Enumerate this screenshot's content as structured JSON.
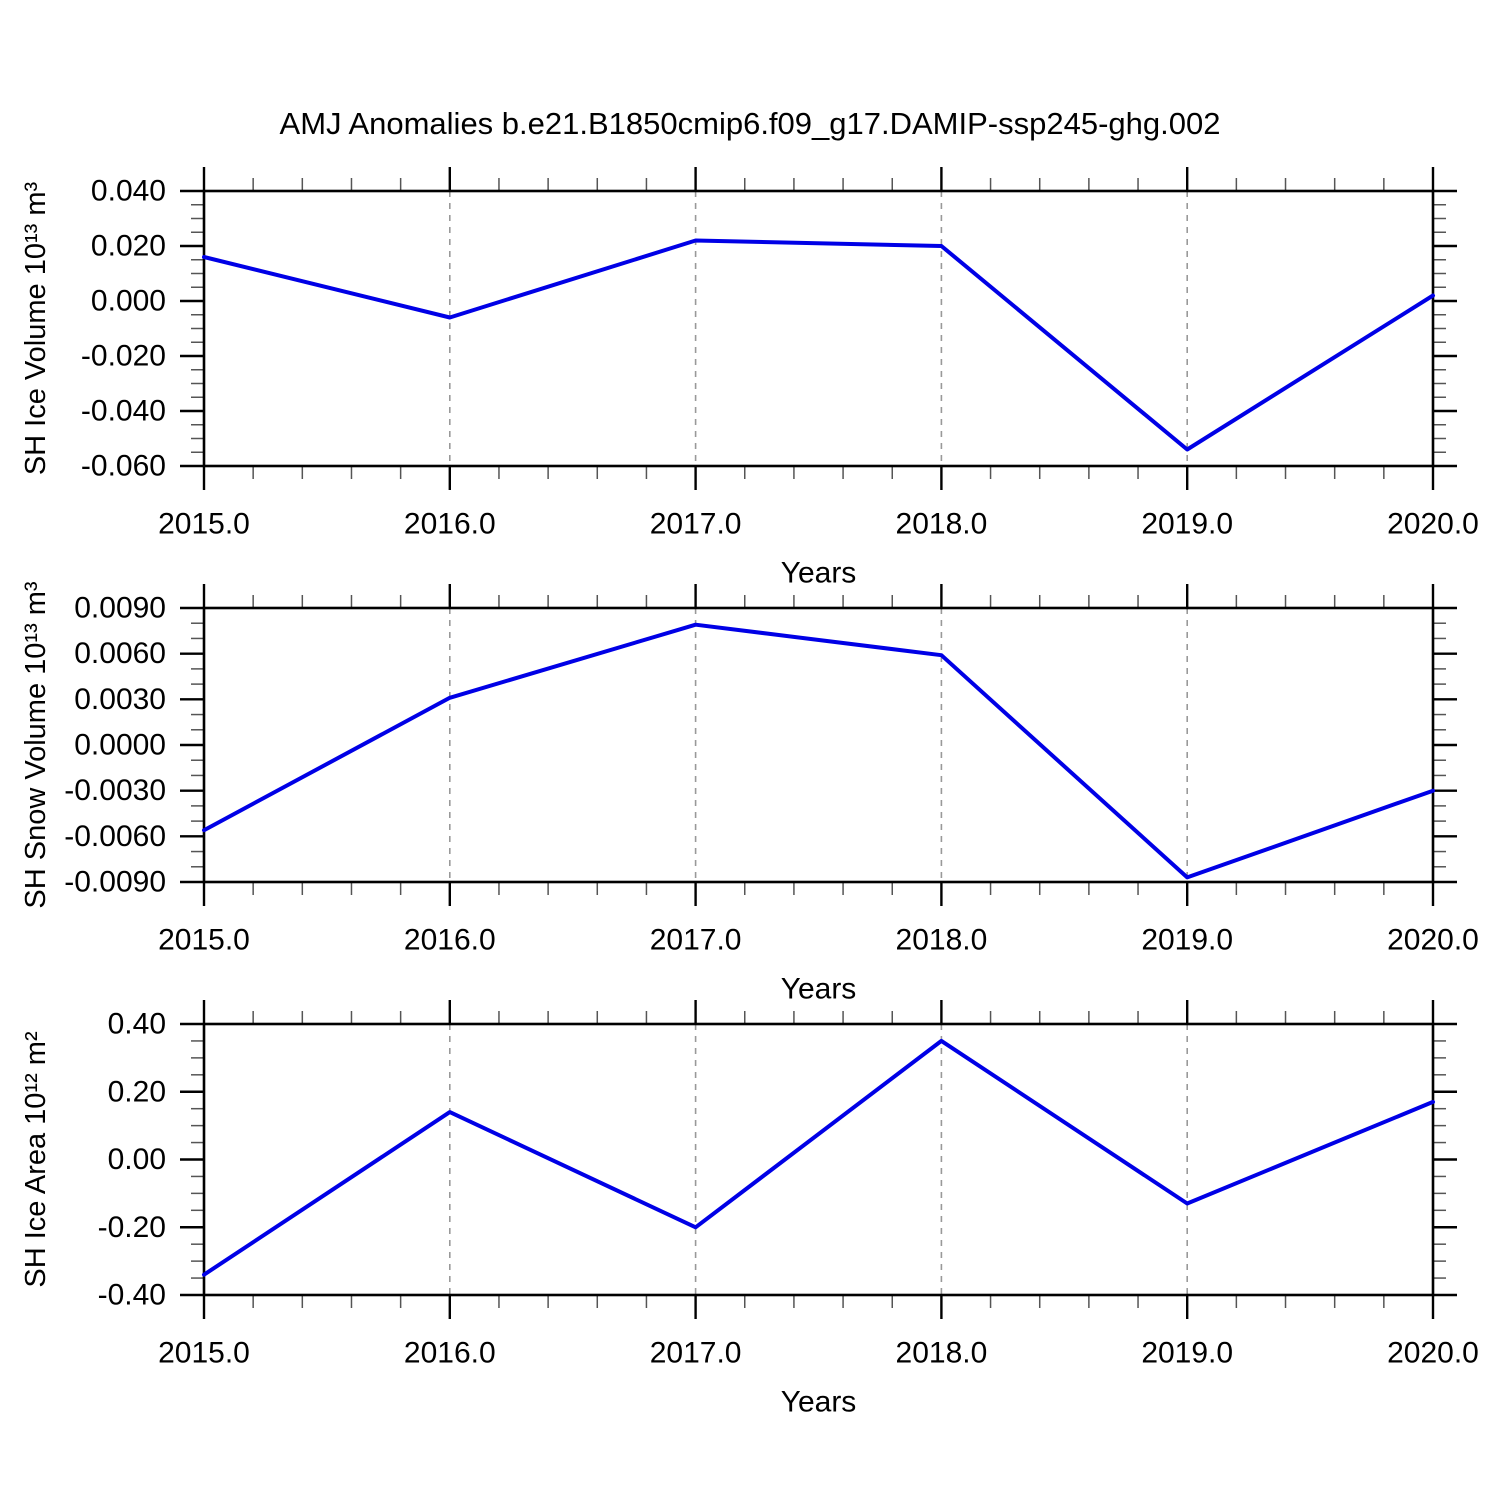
{
  "title": "AMJ Anomalies b.e21.B1850cmip6.f09_g17.DAMIP-ssp245-ghg.002",
  "colors": {
    "line": "#0000E6",
    "frame": "#000000",
    "grid": "#999999",
    "minor_tick": "#555555"
  },
  "chart_data": [
    {
      "type": "line",
      "name": "sh-ice-volume",
      "ylabel": "SH Ice Volume 10¹³ m³",
      "xlabel": "Years",
      "x": [
        2015.0,
        2016.0,
        2017.0,
        2018.0,
        2019.0,
        2020.0
      ],
      "y": [
        0.016,
        -0.006,
        0.022,
        0.02,
        -0.054,
        0.002
      ],
      "xlim": [
        2015.0,
        2020.0
      ],
      "ylim": [
        -0.06,
        0.04
      ],
      "ytick_step": 0.02,
      "ytick_minor_step": 0.005,
      "ytick_decimals": 3,
      "xtick_step": 1.0,
      "xtick_minor_step": 0.2,
      "xtick_labels": [
        "2015.0",
        "2016.0",
        "2017.0",
        "2018.0",
        "2019.0",
        "2020.0"
      ],
      "grid_x": [
        2016.0,
        2017.0,
        2018.0,
        2019.0
      ],
      "legend": "none",
      "grid": "vertical-dashed"
    },
    {
      "type": "line",
      "name": "sh-snow-volume",
      "ylabel": "SH Snow Volume 10¹³ m³",
      "xlabel": "Years",
      "x": [
        2015.0,
        2016.0,
        2017.0,
        2018.0,
        2019.0,
        2020.0
      ],
      "y": [
        -0.0056,
        0.0031,
        0.0079,
        0.0059,
        -0.0087,
        -0.003
      ],
      "xlim": [
        2015.0,
        2020.0
      ],
      "ylim": [
        -0.009,
        0.009
      ],
      "ytick_step": 0.003,
      "ytick_minor_step": 0.001,
      "ytick_decimals": 4,
      "xtick_step": 1.0,
      "xtick_minor_step": 0.2,
      "xtick_labels": [
        "2015.0",
        "2016.0",
        "2017.0",
        "2018.0",
        "2019.0",
        "2020.0"
      ],
      "grid_x": [
        2016.0,
        2017.0,
        2018.0,
        2019.0
      ],
      "legend": "none",
      "grid": "vertical-dashed"
    },
    {
      "type": "line",
      "name": "sh-ice-area",
      "ylabel": "SH Ice Area 10¹² m²",
      "xlabel": "Years",
      "x": [
        2015.0,
        2016.0,
        2017.0,
        2018.0,
        2019.0,
        2020.0
      ],
      "y": [
        -0.34,
        0.14,
        -0.2,
        0.35,
        -0.13,
        0.17
      ],
      "xlim": [
        2015.0,
        2020.0
      ],
      "ylim": [
        -0.4,
        0.4
      ],
      "ytick_step": 0.2,
      "ytick_minor_step": 0.05,
      "ytick_decimals": 2,
      "xtick_step": 1.0,
      "xtick_minor_step": 0.2,
      "xtick_labels": [
        "2015.0",
        "2016.0",
        "2017.0",
        "2018.0",
        "2019.0",
        "2020.0"
      ],
      "grid_x": [
        2016.0,
        2017.0,
        2018.0,
        2019.0
      ],
      "legend": "none",
      "grid": "vertical-dashed"
    }
  ]
}
